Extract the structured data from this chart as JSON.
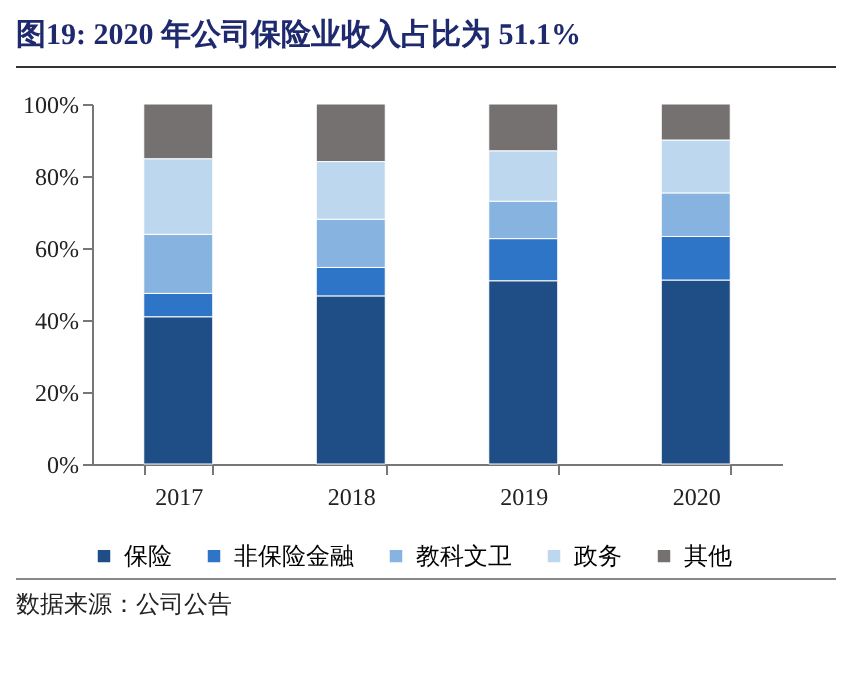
{
  "chart_data": {
    "type": "bar",
    "title": "图19:  2020 年公司保险业收入占比为 51.1%",
    "categories": [
      "2017",
      "2018",
      "2019",
      "2020"
    ],
    "stacked": true,
    "series": [
      {
        "name": "保险",
        "color": "#1f4e87",
        "values": [
          40.9,
          46.7,
          50.9,
          51.1
        ]
      },
      {
        "name": "非保险金融",
        "color": "#2e75c8",
        "values": [
          6.5,
          7.9,
          11.7,
          12.1
        ]
      },
      {
        "name": "教科文卫",
        "color": "#86b3e0",
        "values": [
          16.4,
          13.4,
          10.4,
          12.1
        ]
      },
      {
        "name": "政务",
        "color": "#bdd7ee",
        "values": [
          21.0,
          16.0,
          14.0,
          14.7
        ]
      },
      {
        "name": "其他",
        "color": "#767171",
        "values": [
          15.2,
          16.0,
          13.0,
          10.0
        ]
      }
    ],
    "ylim": [
      0,
      100
    ],
    "yticks": [
      {
        "value": 0,
        "label": "0%"
      },
      {
        "value": 20,
        "label": "20%"
      },
      {
        "value": 40,
        "label": "40%"
      },
      {
        "value": 60,
        "label": "60%"
      },
      {
        "value": 80,
        "label": "80%"
      },
      {
        "value": 100,
        "label": "100%"
      }
    ],
    "grid": false,
    "legend": "bottom",
    "annotations": [
      "数据来源：公司公告"
    ]
  }
}
